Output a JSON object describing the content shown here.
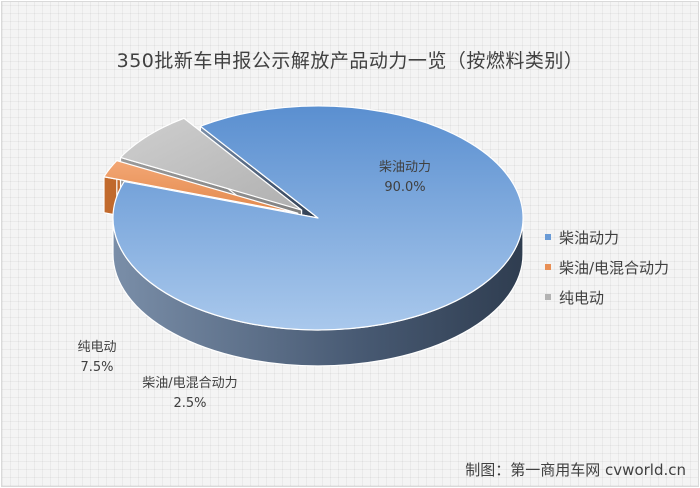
{
  "chart_data": {
    "type": "pie",
    "title": "350批新车申报公示解放产品动力一览（按燃料类别）",
    "categories": [
      "柴油动力",
      "柴油/电混合动力",
      "纯电动"
    ],
    "values": [
      90.0,
      2.5,
      7.5
    ],
    "value_labels": [
      "90.0%",
      "2.5%",
      "7.5%"
    ],
    "colors": [
      "#6a9bd6",
      "#e88f55",
      "#b3b3b3"
    ],
    "exploded": [
      false,
      true,
      true
    ],
    "style": "3d",
    "legend_position": "right"
  },
  "credit": "制图：第一商用车网 cvworld.cn"
}
